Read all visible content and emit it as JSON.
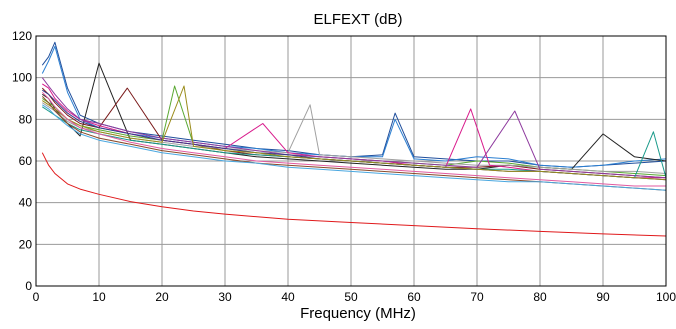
{
  "chart_data": {
    "type": "line",
    "title": "ELFEXT (dB)",
    "xlabel": "Frequency (MHz)",
    "ylabel": "",
    "xlim": [
      0,
      100
    ],
    "ylim": [
      0,
      120
    ],
    "x_ticks": [
      "0",
      "10",
      "20",
      "30",
      "40",
      "50",
      "60",
      "70",
      "80",
      "90",
      "100"
    ],
    "y_ticks": [
      "0",
      "20",
      "40",
      "60",
      "80",
      "100",
      "120"
    ],
    "grid": true,
    "legend": "none",
    "limit_line": {
      "color": "#e0191b",
      "x": [
        1,
        2,
        3,
        5,
        7,
        10,
        15,
        20,
        25,
        30,
        40,
        50,
        60,
        70,
        80,
        90,
        100
      ],
      "y": [
        64,
        58,
        54,
        49,
        46.5,
        44,
        40.5,
        38,
        36,
        34.5,
        32,
        30.5,
        29,
        27.5,
        26.2,
        25,
        24
      ]
    },
    "series": [
      {
        "color": "#1f4e9c",
        "x": [
          1,
          2,
          3,
          5,
          7,
          10,
          15,
          20,
          25,
          30,
          35,
          40,
          45,
          50,
          55,
          57,
          60,
          65,
          70,
          75,
          80,
          85,
          90,
          95,
          100
        ],
        "y": [
          106,
          110,
          117,
          95,
          82,
          78,
          74,
          72,
          70,
          68,
          66,
          65,
          63,
          62,
          63,
          83,
          62,
          61,
          60,
          60,
          58,
          57,
          58,
          59,
          60
        ]
      },
      {
        "color": "#2b7fd1",
        "x": [
          1,
          2,
          3,
          5,
          7,
          10,
          15,
          20,
          25,
          30,
          35,
          40,
          45,
          50,
          55,
          57,
          60,
          65,
          70,
          75,
          80,
          85,
          90,
          95,
          100
        ],
        "y": [
          102,
          108,
          115,
          93,
          80,
          76,
          73,
          71,
          69,
          67,
          66,
          64,
          63,
          62,
          62,
          80,
          61,
          60,
          62,
          61,
          58,
          57,
          58,
          60,
          61
        ]
      },
      {
        "color": "#222222",
        "x": [
          1,
          2,
          3,
          5,
          7,
          10,
          15,
          20,
          25,
          30,
          35,
          40,
          45,
          50,
          55,
          60,
          65,
          70,
          75,
          80,
          85,
          90,
          95,
          100
        ],
        "y": [
          92,
          90,
          85,
          78,
          72,
          107,
          70,
          68,
          66,
          64,
          62,
          61,
          60,
          59,
          58,
          57,
          56,
          56,
          58,
          57,
          56,
          73,
          62,
          60
        ]
      },
      {
        "color": "#7a1a1a",
        "x": [
          1,
          2,
          3,
          5,
          7,
          10,
          14.5,
          20,
          25,
          30,
          35,
          40,
          45,
          50,
          55,
          60,
          65,
          70,
          75,
          80,
          85,
          90,
          95,
          100
        ],
        "y": [
          95,
          92,
          88,
          82,
          78,
          76,
          95,
          70,
          68,
          65,
          63,
          62,
          61,
          60,
          59,
          58,
          57,
          57,
          58,
          56,
          55,
          54,
          53,
          52
        ]
      },
      {
        "color": "#5aa832",
        "x": [
          1,
          2,
          3,
          5,
          7,
          10,
          15,
          20,
          22,
          25,
          30,
          35,
          40,
          45,
          50,
          55,
          60,
          65,
          70,
          75,
          80,
          85,
          90,
          95,
          100
        ],
        "y": [
          90,
          88,
          86,
          80,
          77,
          75,
          72,
          70,
          96,
          68,
          66,
          64,
          63,
          62,
          61,
          60,
          59,
          58,
          60,
          59,
          57,
          56,
          55,
          54,
          53
        ]
      },
      {
        "color": "#a0a0a0",
        "x": [
          1,
          2,
          3,
          5,
          7,
          10,
          15,
          20,
          25,
          30,
          35,
          40,
          43.5,
          45,
          50,
          55,
          60,
          65,
          70,
          75,
          80,
          85,
          90,
          95,
          100
        ],
        "y": [
          88,
          86,
          84,
          79,
          76,
          74,
          71,
          69,
          67,
          66,
          65,
          64,
          87,
          63,
          62,
          61,
          60,
          59,
          58,
          58,
          57,
          56,
          55,
          55,
          54
        ]
      },
      {
        "color": "#d81b8c",
        "x": [
          1,
          2,
          3,
          5,
          7,
          10,
          15,
          20,
          25,
          30,
          36,
          40,
          45,
          50,
          55,
          60,
          65,
          69,
          72,
          75,
          80,
          85,
          90,
          95,
          100
        ],
        "y": [
          97,
          95,
          90,
          84,
          80,
          77,
          73,
          70,
          68,
          66,
          78,
          64,
          62,
          61,
          60,
          58,
          57,
          85,
          58,
          57,
          55,
          54,
          53,
          52,
          52
        ]
      },
      {
        "color": "#8e3a9e",
        "x": [
          1,
          2,
          3,
          5,
          7,
          10,
          15,
          20,
          25,
          30,
          35,
          40,
          45,
          50,
          55,
          60,
          65,
          70,
          76,
          80,
          85,
          90,
          95,
          100
        ],
        "y": [
          100,
          96,
          92,
          85,
          80,
          78,
          74,
          71,
          69,
          67,
          65,
          63,
          62,
          61,
          60,
          59,
          58,
          57,
          84,
          56,
          55,
          54,
          53,
          52
        ]
      },
      {
        "color": "#1a9a8a",
        "x": [
          1,
          2,
          3,
          5,
          7,
          10,
          15,
          20,
          25,
          30,
          35,
          40,
          45,
          50,
          55,
          60,
          65,
          70,
          75,
          80,
          85,
          90,
          95,
          98,
          100
        ],
        "y": [
          86,
          84,
          82,
          78,
          75,
          73,
          70,
          68,
          66,
          64,
          63,
          62,
          61,
          60,
          59,
          58,
          57,
          56,
          56,
          55,
          54,
          53,
          52,
          74,
          52
        ]
      },
      {
        "color": "#3a3a8a",
        "x": [
          1,
          2,
          3,
          5,
          7,
          10,
          15,
          20,
          25,
          30,
          35,
          40,
          45,
          50,
          55,
          60,
          65,
          70,
          75,
          80,
          85,
          90,
          95,
          100
        ],
        "y": [
          94,
          92,
          89,
          83,
          79,
          76,
          73,
          70,
          68,
          66,
          64,
          63,
          61,
          60,
          59,
          58,
          57,
          56,
          55,
          55,
          54,
          53,
          52,
          51
        ]
      },
      {
        "color": "#9a8c1a",
        "x": [
          1,
          2,
          3,
          5,
          7,
          10,
          15,
          20,
          23.5,
          25,
          30,
          35,
          40,
          45,
          50,
          55,
          60,
          65,
          70,
          75,
          80,
          85,
          90,
          95,
          100
        ],
        "y": [
          89,
          87,
          85,
          80,
          77,
          74,
          71,
          69,
          96,
          67,
          65,
          64,
          62,
          61,
          60,
          59,
          58,
          57,
          56,
          55,
          55,
          54,
          53,
          52,
          51
        ]
      },
      {
        "color": "#e05aa0",
        "x": [
          1,
          2,
          3,
          5,
          7,
          10,
          15,
          20,
          25,
          30,
          35,
          40,
          45,
          50,
          55,
          60,
          65,
          70,
          75,
          80,
          85,
          90,
          95,
          100
        ],
        "y": [
          93,
          90,
          86,
          80,
          76,
          73,
          69,
          66,
          64,
          62,
          60,
          59,
          58,
          57,
          56,
          55,
          54,
          53,
          52,
          51,
          50,
          49,
          48,
          48
        ]
      },
      {
        "color": "#8a4a2a",
        "x": [
          1,
          2,
          3,
          5,
          7,
          10,
          15,
          20,
          25,
          30,
          35,
          40,
          45,
          50,
          55,
          60,
          65,
          70,
          75,
          80,
          85,
          90,
          95,
          100
        ],
        "y": [
          91,
          88,
          84,
          78,
          74,
          71,
          68,
          65,
          63,
          61,
          59,
          58,
          57,
          56,
          55,
          54,
          53,
          52,
          51,
          50,
          49,
          48,
          47,
          46
        ]
      },
      {
        "color": "#4aa8e0",
        "x": [
          1,
          2,
          3,
          5,
          7,
          10,
          15,
          20,
          25,
          30,
          35,
          40,
          45,
          50,
          55,
          60,
          65,
          70,
          75,
          80,
          85,
          90,
          95,
          100
        ],
        "y": [
          87,
          85,
          82,
          77,
          73,
          70,
          67,
          64,
          62,
          60,
          59,
          57,
          56,
          55,
          54,
          53,
          52,
          51,
          50,
          50,
          49,
          48,
          47,
          46
        ]
      }
    ]
  }
}
